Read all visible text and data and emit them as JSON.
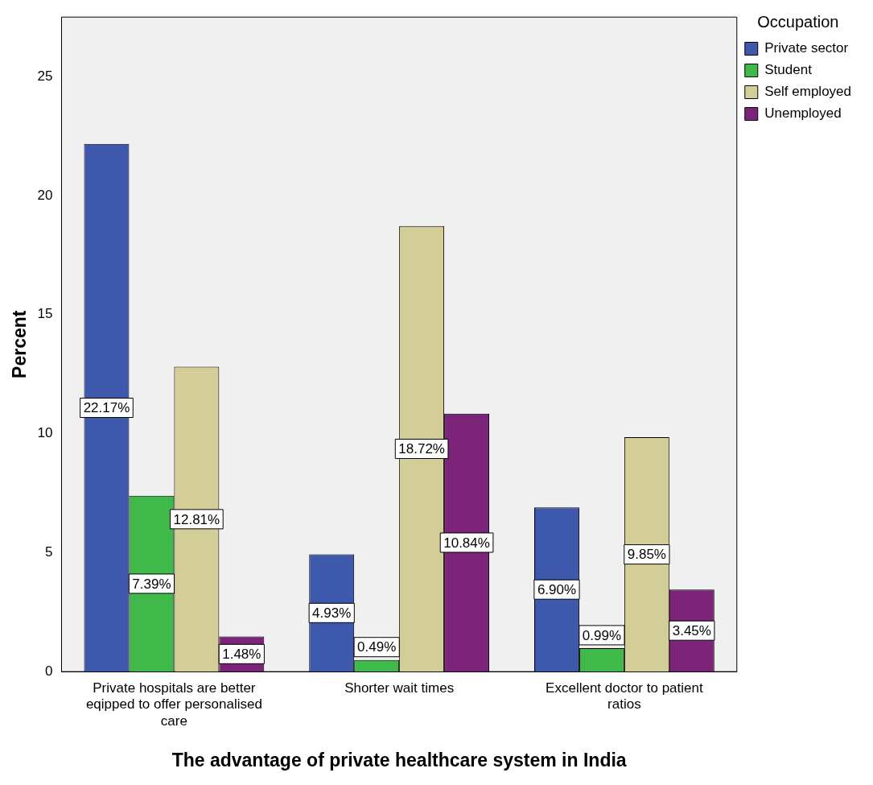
{
  "chart_data": {
    "type": "bar",
    "xlabel": "The advantage of private healthcare system in India",
    "ylabel": "Percent",
    "legend_title": "Occupation",
    "legend": "right",
    "categories": [
      "Private hospitals are better eqipped to offer personalised care",
      "Shorter wait times",
      "Excellent doctor to patient ratios"
    ],
    "series": [
      {
        "name": "Private sector",
        "color": "#3e58ac",
        "values": [
          22.17,
          4.93,
          6.9
        ],
        "value_labels": [
          "22.17%",
          "4.93%",
          "6.90%"
        ]
      },
      {
        "name": "Student",
        "color": "#3fb94a",
        "values": [
          7.39,
          0.49,
          0.99
        ],
        "value_labels": [
          "7.39%",
          "0.49%",
          "0.99%"
        ]
      },
      {
        "name": "Self employed",
        "color": "#d3ce97",
        "values": [
          12.81,
          18.72,
          9.85
        ],
        "value_labels": [
          "12.81%",
          "18.72%",
          "9.85%"
        ]
      },
      {
        "name": "Unemployed",
        "color": "#7b2479",
        "values": [
          1.48,
          10.84,
          3.45
        ],
        "value_labels": [
          "1.48%",
          "10.84%",
          "3.45%"
        ]
      }
    ],
    "ylim": [
      0,
      27.5
    ],
    "yticks": [
      0,
      5,
      10,
      15,
      20,
      25
    ],
    "grid": false
  }
}
